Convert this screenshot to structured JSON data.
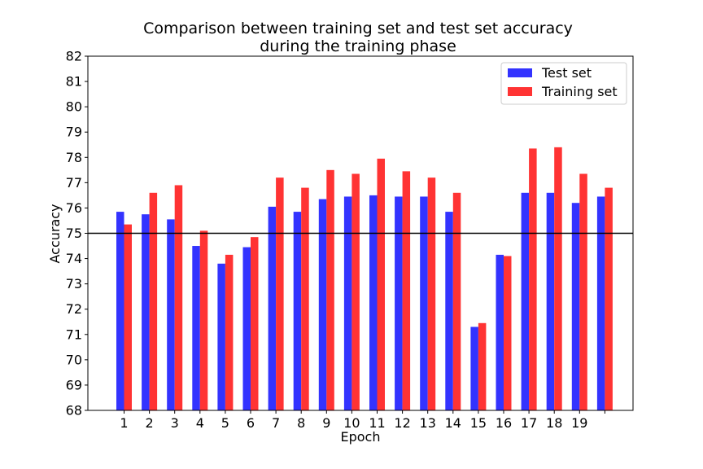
{
  "chart_data": {
    "type": "bar",
    "title": "Comparison between training set and test set accuracy",
    "subtitle": "during the training phase",
    "xlabel": "Epoch",
    "ylabel": "Accuracy",
    "ylim": [
      68,
      82
    ],
    "yticks": [
      "68",
      "69",
      "70",
      "71",
      "72",
      "73",
      "74",
      "75",
      "76",
      "77",
      "78",
      "79",
      "80",
      "81",
      "82"
    ],
    "categories": [
      "1",
      "2",
      "3",
      "4",
      "5",
      "6",
      "7",
      "8",
      "9",
      "10",
      "11",
      "12",
      "13",
      "14",
      "15",
      "16",
      "17",
      "18",
      "19",
      ""
    ],
    "series": [
      {
        "name": "Test set",
        "color": "#3333ff",
        "values": [
          75.85,
          75.75,
          75.55,
          74.5,
          73.8,
          74.45,
          76.05,
          75.85,
          76.35,
          76.45,
          76.5,
          76.45,
          76.45,
          75.85,
          71.3,
          74.15,
          76.6,
          76.6,
          76.2,
          76.45
        ]
      },
      {
        "name": "Training set",
        "color": "#ff3333",
        "values": [
          75.35,
          76.6,
          76.9,
          75.1,
          74.15,
          74.85,
          77.2,
          76.8,
          77.5,
          77.35,
          77.95,
          77.45,
          77.2,
          76.6,
          71.45,
          74.1,
          78.35,
          78.4,
          77.35,
          76.8
        ]
      }
    ],
    "reference_line": 75,
    "legend_position": "top-right",
    "grid": false
  }
}
